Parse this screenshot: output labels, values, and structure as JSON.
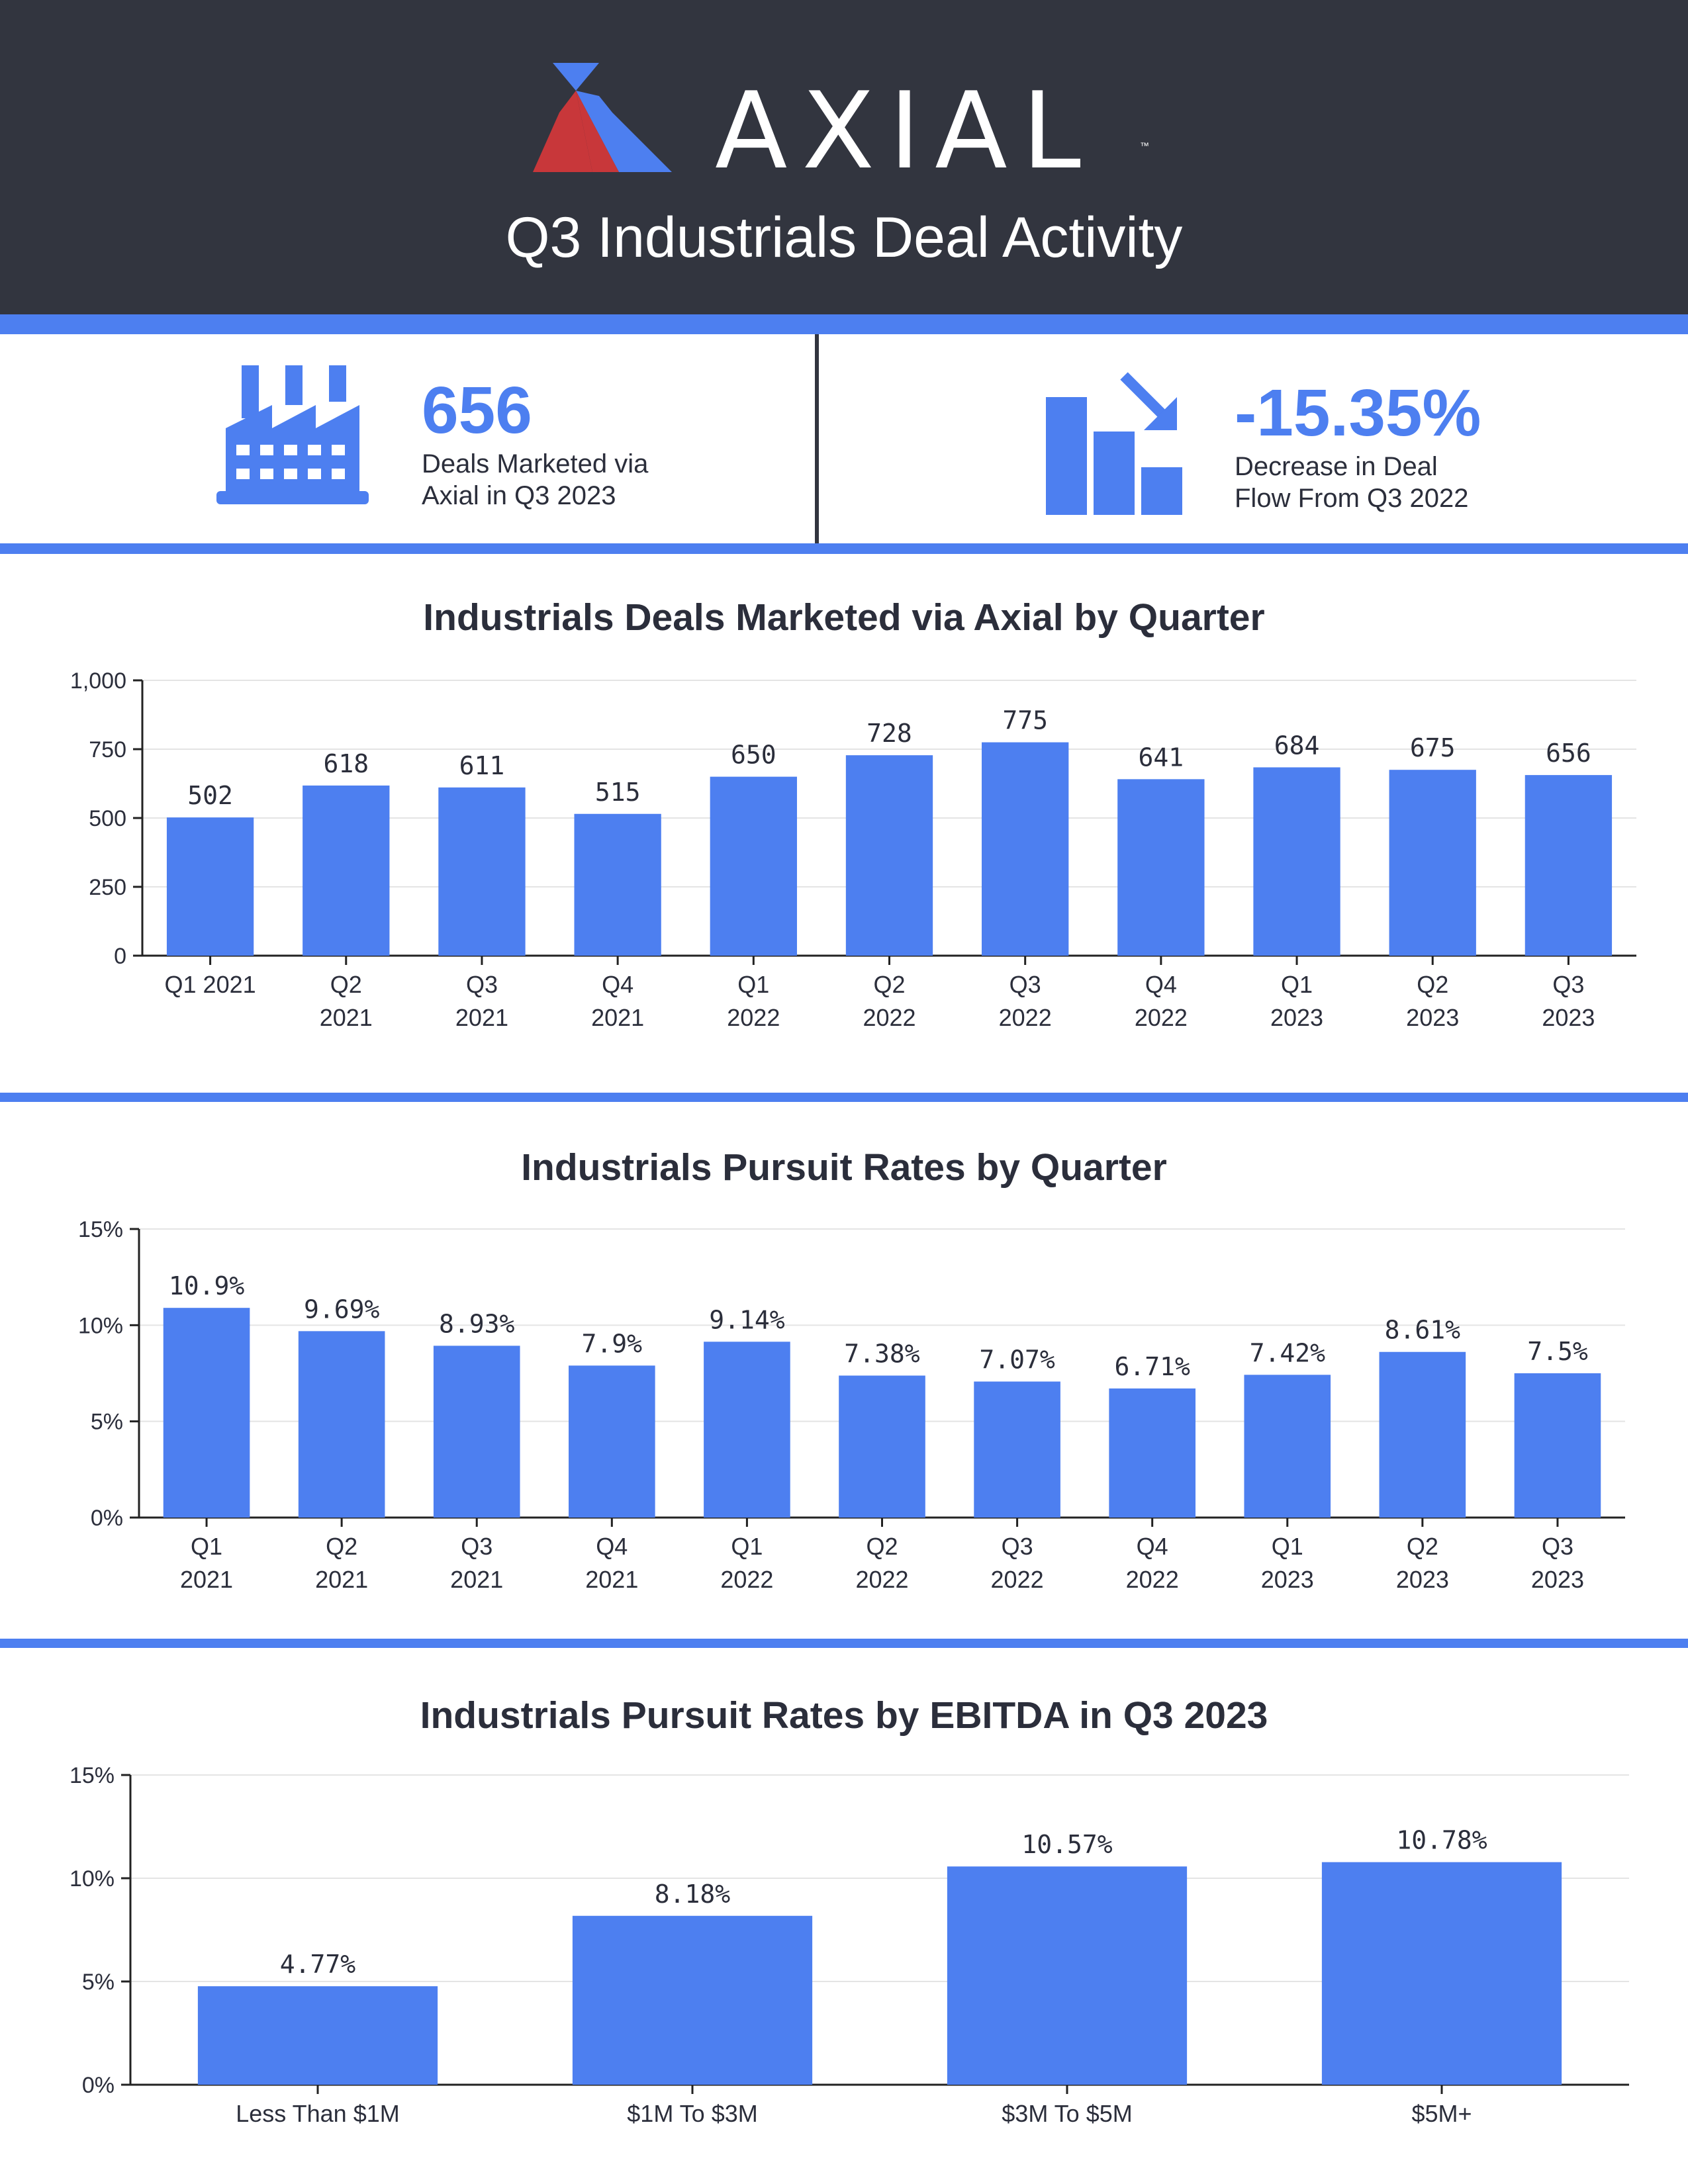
{
  "header": {
    "logo_text": "AXIAL",
    "logo_tm": "™",
    "title": "Q3 Industrials Deal Activity"
  },
  "stats": [
    {
      "icon": "factory-icon",
      "value": "656",
      "caption_line1": "Deals Marketed via",
      "caption_line2": "Axial in Q3 2023"
    },
    {
      "icon": "declining-bar-chart-icon",
      "value": "-15.35%",
      "caption_line1": "Decrease in Deal",
      "caption_line2": "Flow From Q3 2022"
    }
  ],
  "colors": {
    "brand_blue": "#4d7ff0",
    "header_dark": "#32353f",
    "logo_red": "#c8373a"
  },
  "chart_data": [
    {
      "type": "bar",
      "title": "Industrials Deals Marketed via Axial by Quarter",
      "categories": [
        "Q1 2021",
        "Q2|2021",
        "Q3|2021",
        "Q4|2021",
        "Q1|2022",
        "Q2|2022",
        "Q3|2022",
        "Q4|2022",
        "Q1|2023",
        "Q2|2023",
        "Q3|2023"
      ],
      "values": [
        502,
        618,
        611,
        515,
        650,
        728,
        775,
        641,
        684,
        675,
        656
      ],
      "value_labels": [
        "502",
        "618",
        "611",
        "515",
        "650",
        "728",
        "775",
        "641",
        "684",
        "675",
        "656"
      ],
      "ylim": [
        0,
        1000
      ],
      "yticks": [
        0,
        250,
        500,
        750,
        1000
      ],
      "ytick_labels": [
        "0",
        "250",
        "500",
        "750",
        "1,000"
      ],
      "grid": true
    },
    {
      "type": "bar",
      "title": "Industrials Pursuit Rates by Quarter",
      "categories": [
        "Q1|2021",
        "Q2|2021",
        "Q3|2021",
        "Q4|2021",
        "Q1|2022",
        "Q2|2022",
        "Q3|2022",
        "Q4|2022",
        "Q1|2023",
        "Q2|2023",
        "Q3|2023"
      ],
      "values": [
        10.9,
        9.69,
        8.93,
        7.9,
        9.14,
        7.38,
        7.07,
        6.71,
        7.42,
        8.61,
        7.5
      ],
      "value_labels": [
        "10.9%",
        "9.69%",
        "8.93%",
        "7.9%",
        "9.14%",
        "7.38%",
        "7.07%",
        "6.71%",
        "7.42%",
        "8.61%",
        "7.5%"
      ],
      "ylim": [
        0,
        15
      ],
      "yticks": [
        0,
        5,
        10,
        15
      ],
      "ytick_labels": [
        "0%",
        "5%",
        "10%",
        "15%"
      ],
      "grid": true
    },
    {
      "type": "bar",
      "title": "Industrials Pursuit Rates by EBITDA in Q3 2023",
      "categories": [
        "Less Than $1M",
        "$1M To $3M",
        "$3M To $5M",
        "$5M+"
      ],
      "values": [
        4.77,
        8.18,
        10.57,
        10.78
      ],
      "value_labels": [
        "4.77%",
        "8.18%",
        "10.57%",
        "10.78%"
      ],
      "ylim": [
        0,
        15
      ],
      "yticks": [
        0,
        5,
        10,
        15
      ],
      "ytick_labels": [
        "0%",
        "5%",
        "10%",
        "15%"
      ],
      "grid": true
    }
  ]
}
